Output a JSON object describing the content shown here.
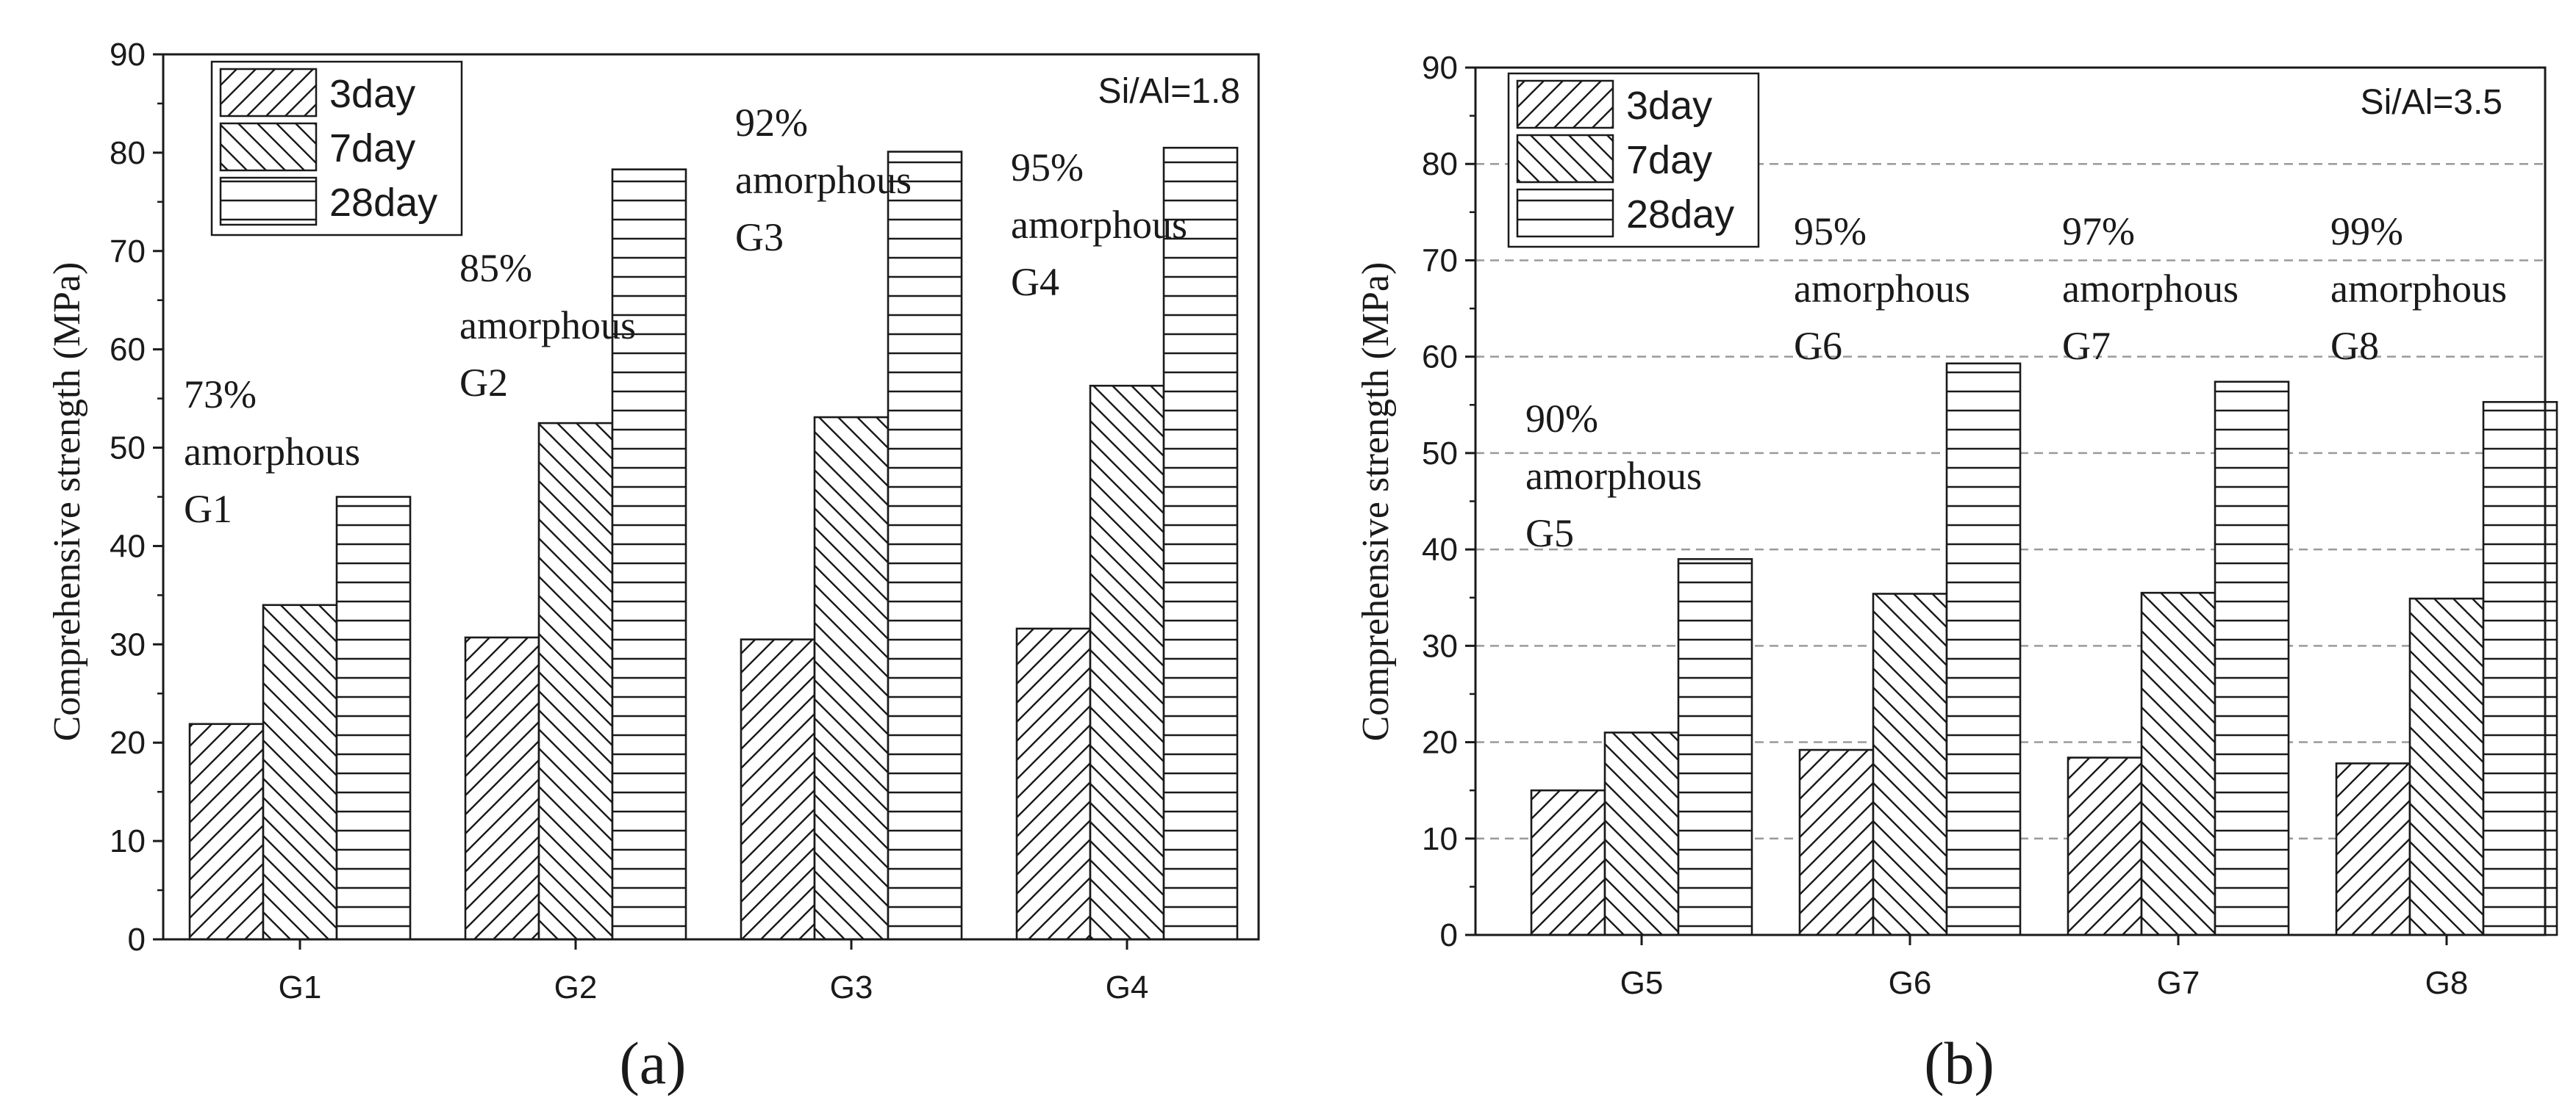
{
  "chart_data": [
    {
      "type": "bar",
      "panel_label": "(a)",
      "ylabel": "Comprehensive strength (MPa)",
      "xlabel": "",
      "ylim": [
        0,
        90
      ],
      "yticks": [
        0,
        10,
        20,
        30,
        40,
        50,
        60,
        70,
        80,
        90
      ],
      "grid": false,
      "note": "Si/Al=1.8",
      "legend_position": "top-left",
      "categories": [
        "G1",
        "G2",
        "G3",
        "G4"
      ],
      "series": [
        {
          "name": "3day",
          "pattern": "diagonal-up",
          "values": [
            21.9,
            30.7,
            30.5,
            31.6
          ]
        },
        {
          "name": "7day",
          "pattern": "diagonal-down",
          "values": [
            34.0,
            52.5,
            53.1,
            56.3
          ]
        },
        {
          "name": "28day",
          "pattern": "horizontal",
          "values": [
            45.0,
            78.3,
            80.1,
            80.5
          ]
        }
      ],
      "annotations": [
        {
          "category": "G1",
          "lines": [
            "73%",
            "amorphous",
            "G1"
          ]
        },
        {
          "category": "G2",
          "lines": [
            "85%",
            "amorphous",
            "G2"
          ]
        },
        {
          "category": "G3",
          "lines": [
            "92%",
            "amorphous",
            "G3"
          ]
        },
        {
          "category": "G4",
          "lines": [
            "95%",
            "amorphous",
            "G4"
          ]
        }
      ]
    },
    {
      "type": "bar",
      "panel_label": "(b)",
      "ylabel": "Comprehensive strength (MPa)",
      "xlabel": "",
      "ylim": [
        0,
        90
      ],
      "yticks": [
        0,
        10,
        20,
        30,
        40,
        50,
        60,
        70,
        80,
        90
      ],
      "grid": true,
      "note": "Si/Al=3.5",
      "legend_position": "top-left",
      "categories": [
        "G5",
        "G6",
        "G7",
        "G8"
      ],
      "series": [
        {
          "name": "3day",
          "pattern": "diagonal-up",
          "values": [
            15.0,
            19.2,
            18.4,
            17.8
          ]
        },
        {
          "name": "7day",
          "pattern": "diagonal-down",
          "values": [
            21.0,
            35.4,
            35.5,
            34.9
          ]
        },
        {
          "name": "28day",
          "pattern": "horizontal",
          "values": [
            39.0,
            59.3,
            57.4,
            55.3
          ]
        }
      ],
      "annotations": [
        {
          "category": "G5",
          "lines": [
            "90%",
            "amorphous",
            "G5"
          ]
        },
        {
          "category": "G6",
          "lines": [
            "95%",
            "amorphous",
            "G6"
          ]
        },
        {
          "category": "G7",
          "lines": [
            "97%",
            "amorphous",
            "G7"
          ]
        },
        {
          "category": "G8",
          "lines": [
            "99%",
            "amorphous",
            "G8"
          ]
        }
      ]
    }
  ]
}
